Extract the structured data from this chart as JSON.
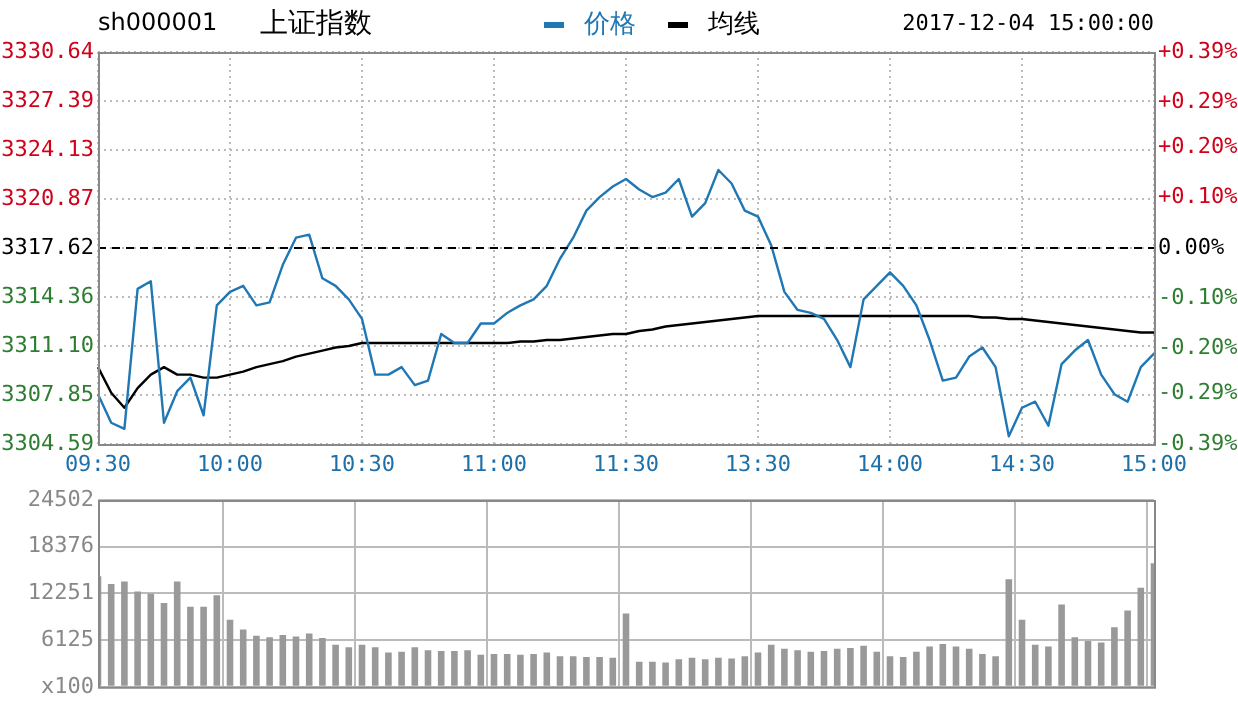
{
  "chart_data": [
    {
      "type": "line",
      "title": "上证指数",
      "subtitle": "sh000001",
      "annotations": [
        "2017-12-04 15:00:00"
      ],
      "categories": [
        "09:30",
        null,
        null,
        null,
        null,
        null,
        null,
        null,
        null,
        null,
        "10:00",
        null,
        null,
        null,
        null,
        null,
        null,
        null,
        null,
        null,
        "10:30",
        null,
        null,
        null,
        null,
        null,
        null,
        null,
        null,
        null,
        "11:00",
        null,
        null,
        null,
        null,
        null,
        null,
        null,
        null,
        null,
        "11:30",
        null,
        null,
        null,
        null,
        null,
        null,
        null,
        null,
        null,
        "13:30",
        null,
        null,
        null,
        null,
        null,
        null,
        null,
        null,
        null,
        "14:00",
        null,
        null,
        null,
        null,
        null,
        null,
        null,
        null,
        null,
        "14:30",
        null,
        null,
        null,
        null,
        null,
        null,
        null,
        null,
        null,
        "15:00"
      ],
      "series": [
        {
          "name": "价格",
          "color": "#1f77b4",
          "values": [
            3307.9,
            3306.0,
            3305.6,
            3314.9,
            3315.4,
            3306.0,
            3308.1,
            3309.0,
            3306.5,
            3313.8,
            3314.7,
            3315.1,
            3313.8,
            3314.0,
            3316.5,
            3318.3,
            3318.5,
            3315.6,
            3315.1,
            3314.2,
            3312.9,
            3309.2,
            3309.2,
            3309.7,
            3308.5,
            3308.8,
            3311.9,
            3311.3,
            3311.3,
            3312.6,
            3312.6,
            3313.3,
            3313.8,
            3314.2,
            3315.1,
            3316.9,
            3318.3,
            3320.1,
            3321.0,
            3321.7,
            3322.2,
            3321.5,
            3321.0,
            3321.3,
            3322.2,
            3319.7,
            3320.6,
            3322.8,
            3321.9,
            3320.1,
            3319.7,
            3317.8,
            3314.7,
            3313.5,
            3313.3,
            3312.9,
            3311.5,
            3309.7,
            3314.2,
            3315.1,
            3316.0,
            3315.1,
            3313.8,
            3311.5,
            3308.8,
            3309.0,
            3310.4,
            3311.0,
            3309.7,
            3305.1,
            3307.0,
            3307.4,
            3305.8,
            3309.9,
            3310.8,
            3311.5,
            3309.2,
            3307.9,
            3307.4,
            3309.7,
            3310.6
          ]
        },
        {
          "name": "均线",
          "color": "#000000",
          "values": [
            3309.7,
            3308.0,
            3307.0,
            3308.3,
            3309.2,
            3309.7,
            3309.2,
            3309.2,
            3309.0,
            3309.0,
            3309.2,
            3309.4,
            3309.7,
            3309.9,
            3310.1,
            3310.4,
            3310.6,
            3310.8,
            3311.0,
            3311.1,
            3311.3,
            3311.3,
            3311.3,
            3311.3,
            3311.3,
            3311.3,
            3311.3,
            3311.3,
            3311.3,
            3311.3,
            3311.3,
            3311.3,
            3311.4,
            3311.4,
            3311.5,
            3311.5,
            3311.6,
            3311.7,
            3311.8,
            3311.9,
            3311.9,
            3312.1,
            3312.2,
            3312.4,
            3312.5,
            3312.6,
            3312.7,
            3312.8,
            3312.9,
            3313.0,
            3313.1,
            3313.1,
            3313.1,
            3313.1,
            3313.1,
            3313.1,
            3313.1,
            3313.1,
            3313.1,
            3313.1,
            3313.1,
            3313.1,
            3313.1,
            3313.1,
            3313.1,
            3313.1,
            3313.1,
            3313.0,
            3313.0,
            3312.9,
            3312.9,
            3312.8,
            3312.7,
            3312.6,
            3312.5,
            3312.4,
            3312.3,
            3312.2,
            3312.1,
            3312.0,
            3312.0
          ]
        }
      ],
      "ylim": [
        3304.59,
        3330.64
      ],
      "yticks": [
        3304.59,
        3307.85,
        {
          "value": 3311.1,
          "label": "3311.10"
        },
        3314.36,
        3317.62,
        3320.87,
        3324.13,
        3327.39,
        3330.64
      ],
      "y2lim": [
        -0.39,
        0.39
      ],
      "y2ticks": [
        {
          "value": -0.39,
          "label": "-0.39%"
        },
        {
          "value": -0.29,
          "label": "-0.29%"
        },
        {
          "value": -0.2,
          "label": "-0.20%"
        },
        {
          "value": -0.1,
          "label": "-0.10%"
        },
        {
          "value": 0,
          "label": "0.00%"
        },
        {
          "value": 0.1,
          "label": "+0.10%"
        },
        {
          "value": 0.2,
          "label": "+0.20%"
        },
        {
          "value": 0.29,
          "label": "+0.29%"
        },
        {
          "value": 0.39,
          "label": "+0.39%"
        }
      ],
      "ref_lines": [
        {
          "axis": "y",
          "value": 3317.62,
          "color": "#000000",
          "line_style": "dashed"
        }
      ],
      "grid": true,
      "legend": "top",
      "marker": "none",
      "line_style": "solid"
    },
    {
      "type": "bar",
      "categories": [
        null,
        null,
        null,
        null,
        null,
        null,
        null,
        null,
        null,
        null,
        null,
        null,
        null,
        null,
        null,
        null,
        null,
        null,
        null,
        null,
        null,
        null,
        null,
        null,
        null,
        null,
        null,
        null,
        null,
        null,
        null,
        null,
        null,
        null,
        null,
        null,
        null,
        null,
        null,
        null,
        null,
        null,
        null,
        null,
        null,
        null,
        null,
        null,
        null,
        null,
        null,
        null,
        null,
        null,
        null,
        null,
        null,
        null,
        null,
        null,
        null,
        null,
        null,
        null,
        null,
        null,
        null,
        null,
        null,
        null,
        null,
        null,
        null,
        null,
        null,
        null,
        null,
        null,
        null,
        null,
        null
      ],
      "values": [
        14500,
        13500,
        13800,
        12500,
        12200,
        11000,
        13800,
        10500,
        10500,
        12000,
        8800,
        7500,
        6700,
        6500,
        6800,
        6600,
        7000,
        6400,
        5500,
        5200,
        5500,
        5200,
        4500,
        4600,
        5200,
        4800,
        4700,
        4700,
        4800,
        4200,
        4300,
        4300,
        4200,
        4300,
        4500,
        4000,
        4000,
        3900,
        3900,
        3800,
        9600,
        3300,
        3300,
        3200,
        3600,
        3800,
        3600,
        3800,
        3700,
        4000,
        4500,
        5500,
        5000,
        4800,
        4600,
        4700,
        5000,
        5100,
        5400,
        4600,
        4000,
        3900,
        4600,
        5300,
        5600,
        5300,
        5000,
        4300,
        4000,
        14100,
        8800,
        5500,
        5300,
        10800,
        6500,
        6000,
        5800,
        7800,
        10000,
        13000,
        16200
      ],
      "color": "#999999",
      "ylim": [
        0,
        24502
      ],
      "yticks": [
        {
          "value": 0,
          "label": "x100"
        },
        6125,
        12251,
        18376,
        24502
      ],
      "tick_labels": "y",
      "grid": true
    }
  ]
}
